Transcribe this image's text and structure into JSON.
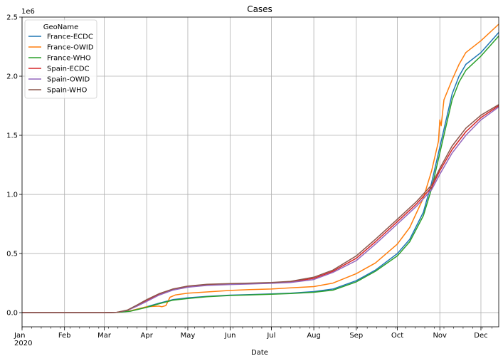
{
  "chart_data": {
    "type": "line",
    "title": "Cases",
    "xlabel": "Date",
    "ylabel": "",
    "y_offset_label": "1e6",
    "year_label": "2020",
    "grid": true,
    "legend": {
      "title": "GeoName",
      "placement": "top-left"
    },
    "xlim": [
      "2020-01-01",
      "2020-12-14"
    ],
    "ylim": [
      -0.12,
      2.5
    ],
    "x_ticks": [
      {
        "date": "2020-01-01",
        "label": "Jan"
      },
      {
        "date": "2020-02-01",
        "label": "Feb"
      },
      {
        "date": "2020-03-01",
        "label": "Mar"
      },
      {
        "date": "2020-04-01",
        "label": "Apr"
      },
      {
        "date": "2020-05-01",
        "label": "May"
      },
      {
        "date": "2020-06-01",
        "label": "Jun"
      },
      {
        "date": "2020-07-01",
        "label": "Jul"
      },
      {
        "date": "2020-08-01",
        "label": "Aug"
      },
      {
        "date": "2020-09-01",
        "label": "Sep"
      },
      {
        "date": "2020-10-01",
        "label": "Oct"
      },
      {
        "date": "2020-11-01",
        "label": "Nov"
      },
      {
        "date": "2020-12-01",
        "label": "Dec"
      }
    ],
    "y_ticks": [
      {
        "value": 0.0,
        "label": "0.0"
      },
      {
        "value": 0.5,
        "label": "0.5"
      },
      {
        "value": 1.0,
        "label": "1.0"
      },
      {
        "value": 1.5,
        "label": "1.5"
      },
      {
        "value": 2.0,
        "label": "2.0"
      },
      {
        "value": 2.5,
        "label": "2.5"
      }
    ],
    "series": [
      {
        "name": "France-ECDC",
        "color": "#1f77b4",
        "points": [
          [
            "2020-01-01",
            0
          ],
          [
            "2020-03-01",
            0.0001
          ],
          [
            "2020-03-10",
            0.002
          ],
          [
            "2020-03-20",
            0.015
          ],
          [
            "2020-04-01",
            0.05
          ],
          [
            "2020-04-10",
            0.08
          ],
          [
            "2020-04-20",
            0.11
          ],
          [
            "2020-05-01",
            0.125
          ],
          [
            "2020-05-15",
            0.138
          ],
          [
            "2020-06-01",
            0.148
          ],
          [
            "2020-06-15",
            0.152
          ],
          [
            "2020-07-01",
            0.158
          ],
          [
            "2020-07-15",
            0.165
          ],
          [
            "2020-08-01",
            0.178
          ],
          [
            "2020-08-15",
            0.2
          ],
          [
            "2020-09-01",
            0.27
          ],
          [
            "2020-09-15",
            0.36
          ],
          [
            "2020-10-01",
            0.5
          ],
          [
            "2020-10-10",
            0.62
          ],
          [
            "2020-10-20",
            0.85
          ],
          [
            "2020-10-26",
            1.1
          ],
          [
            "2020-11-01",
            1.4
          ],
          [
            "2020-11-05",
            1.6
          ],
          [
            "2020-11-10",
            1.85
          ],
          [
            "2020-11-15",
            2.0
          ],
          [
            "2020-11-20",
            2.1
          ],
          [
            "2020-12-01",
            2.2
          ],
          [
            "2020-12-14",
            2.37
          ]
        ]
      },
      {
        "name": "France-OWID",
        "color": "#ff7f0e",
        "points": [
          [
            "2020-01-01",
            0
          ],
          [
            "2020-03-01",
            0.0001
          ],
          [
            "2020-03-10",
            0.002
          ],
          [
            "2020-03-20",
            0.015
          ],
          [
            "2020-04-01",
            0.05
          ],
          [
            "2020-04-10",
            0.055
          ],
          [
            "2020-04-12",
            0.05
          ],
          [
            "2020-04-15",
            0.06
          ],
          [
            "2020-04-18",
            0.13
          ],
          [
            "2020-04-22",
            0.15
          ],
          [
            "2020-05-01",
            0.165
          ],
          [
            "2020-05-15",
            0.175
          ],
          [
            "2020-06-01",
            0.188
          ],
          [
            "2020-06-15",
            0.195
          ],
          [
            "2020-07-01",
            0.2
          ],
          [
            "2020-07-15",
            0.21
          ],
          [
            "2020-08-01",
            0.22
          ],
          [
            "2020-08-15",
            0.25
          ],
          [
            "2020-09-01",
            0.33
          ],
          [
            "2020-09-15",
            0.42
          ],
          [
            "2020-10-01",
            0.58
          ],
          [
            "2020-10-10",
            0.72
          ],
          [
            "2020-10-20",
            0.97
          ],
          [
            "2020-10-26",
            1.2
          ],
          [
            "2020-10-31",
            1.45
          ],
          [
            "2020-11-01",
            1.63
          ],
          [
            "2020-11-02",
            1.58
          ],
          [
            "2020-11-04",
            1.8
          ],
          [
            "2020-11-10",
            1.97
          ],
          [
            "2020-11-15",
            2.1
          ],
          [
            "2020-11-20",
            2.2
          ],
          [
            "2020-12-01",
            2.3
          ],
          [
            "2020-12-14",
            2.44
          ]
        ]
      },
      {
        "name": "France-WHO",
        "color": "#2ca02c",
        "points": [
          [
            "2020-01-01",
            0
          ],
          [
            "2020-03-01",
            0.0001
          ],
          [
            "2020-03-10",
            0.002
          ],
          [
            "2020-03-20",
            0.012
          ],
          [
            "2020-04-01",
            0.045
          ],
          [
            "2020-04-10",
            0.075
          ],
          [
            "2020-04-20",
            0.105
          ],
          [
            "2020-05-01",
            0.12
          ],
          [
            "2020-05-15",
            0.135
          ],
          [
            "2020-06-01",
            0.145
          ],
          [
            "2020-06-15",
            0.15
          ],
          [
            "2020-07-01",
            0.155
          ],
          [
            "2020-07-15",
            0.162
          ],
          [
            "2020-08-01",
            0.172
          ],
          [
            "2020-08-15",
            0.19
          ],
          [
            "2020-09-01",
            0.26
          ],
          [
            "2020-09-15",
            0.35
          ],
          [
            "2020-10-01",
            0.48
          ],
          [
            "2020-10-10",
            0.6
          ],
          [
            "2020-10-20",
            0.82
          ],
          [
            "2020-10-26",
            1.05
          ],
          [
            "2020-11-01",
            1.35
          ],
          [
            "2020-11-05",
            1.55
          ],
          [
            "2020-11-10",
            1.8
          ],
          [
            "2020-11-15",
            1.95
          ],
          [
            "2020-11-20",
            2.05
          ],
          [
            "2020-12-01",
            2.17
          ],
          [
            "2020-12-14",
            2.34
          ]
        ]
      },
      {
        "name": "Spain-ECDC",
        "color": "#d62728",
        "points": [
          [
            "2020-01-01",
            0
          ],
          [
            "2020-03-01",
            0.0001
          ],
          [
            "2020-03-10",
            0.002
          ],
          [
            "2020-03-18",
            0.02
          ],
          [
            "2020-03-25",
            0.06
          ],
          [
            "2020-04-01",
            0.1
          ],
          [
            "2020-04-10",
            0.155
          ],
          [
            "2020-04-20",
            0.195
          ],
          [
            "2020-05-01",
            0.22
          ],
          [
            "2020-05-15",
            0.235
          ],
          [
            "2020-06-01",
            0.242
          ],
          [
            "2020-06-15",
            0.245
          ],
          [
            "2020-07-01",
            0.25
          ],
          [
            "2020-07-15",
            0.26
          ],
          [
            "2020-08-01",
            0.29
          ],
          [
            "2020-08-15",
            0.35
          ],
          [
            "2020-09-01",
            0.46
          ],
          [
            "2020-09-15",
            0.6
          ],
          [
            "2020-10-01",
            0.77
          ],
          [
            "2020-10-15",
            0.92
          ],
          [
            "2020-10-26",
            1.06
          ],
          [
            "2020-11-01",
            1.2
          ],
          [
            "2020-11-10",
            1.38
          ],
          [
            "2020-11-20",
            1.53
          ],
          [
            "2020-12-01",
            1.65
          ],
          [
            "2020-12-14",
            1.75
          ]
        ]
      },
      {
        "name": "Spain-OWID",
        "color": "#9467bd",
        "points": [
          [
            "2020-01-01",
            0
          ],
          [
            "2020-03-01",
            0.0001
          ],
          [
            "2020-03-10",
            0.002
          ],
          [
            "2020-03-18",
            0.02
          ],
          [
            "2020-03-25",
            0.055
          ],
          [
            "2020-04-01",
            0.095
          ],
          [
            "2020-04-10",
            0.148
          ],
          [
            "2020-04-20",
            0.19
          ],
          [
            "2020-05-01",
            0.215
          ],
          [
            "2020-05-15",
            0.23
          ],
          [
            "2020-06-01",
            0.238
          ],
          [
            "2020-06-15",
            0.242
          ],
          [
            "2020-07-01",
            0.248
          ],
          [
            "2020-07-15",
            0.255
          ],
          [
            "2020-08-01",
            0.28
          ],
          [
            "2020-08-15",
            0.34
          ],
          [
            "2020-09-01",
            0.44
          ],
          [
            "2020-09-15",
            0.58
          ],
          [
            "2020-10-01",
            0.75
          ],
          [
            "2020-10-15",
            0.9
          ],
          [
            "2020-10-26",
            1.04
          ],
          [
            "2020-11-01",
            1.17
          ],
          [
            "2020-11-10",
            1.35
          ],
          [
            "2020-11-20",
            1.5
          ],
          [
            "2020-12-01",
            1.63
          ],
          [
            "2020-12-14",
            1.74
          ]
        ]
      },
      {
        "name": "Spain-WHO",
        "color": "#8c564b",
        "points": [
          [
            "2020-01-01",
            0
          ],
          [
            "2020-03-01",
            0.0001
          ],
          [
            "2020-03-10",
            0.002
          ],
          [
            "2020-03-18",
            0.022
          ],
          [
            "2020-03-25",
            0.065
          ],
          [
            "2020-04-01",
            0.11
          ],
          [
            "2020-04-10",
            0.16
          ],
          [
            "2020-04-20",
            0.2
          ],
          [
            "2020-05-01",
            0.225
          ],
          [
            "2020-05-15",
            0.24
          ],
          [
            "2020-06-01",
            0.246
          ],
          [
            "2020-06-15",
            0.25
          ],
          [
            "2020-07-01",
            0.255
          ],
          [
            "2020-07-15",
            0.265
          ],
          [
            "2020-08-01",
            0.3
          ],
          [
            "2020-08-15",
            0.36
          ],
          [
            "2020-09-01",
            0.48
          ],
          [
            "2020-09-15",
            0.62
          ],
          [
            "2020-10-01",
            0.79
          ],
          [
            "2020-10-15",
            0.94
          ],
          [
            "2020-10-26",
            1.08
          ],
          [
            "2020-11-01",
            1.22
          ],
          [
            "2020-11-10",
            1.41
          ],
          [
            "2020-11-20",
            1.56
          ],
          [
            "2020-12-01",
            1.67
          ],
          [
            "2020-12-14",
            1.76
          ]
        ]
      }
    ]
  }
}
